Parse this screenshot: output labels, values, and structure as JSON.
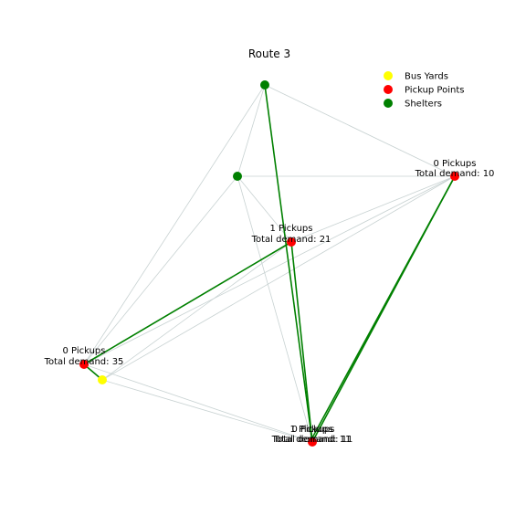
{
  "title": "Route 3",
  "legend": {
    "placement": "top-right",
    "items": [
      {
        "label": "Bus Yards",
        "color": "#ffff00"
      },
      {
        "label": "Pickup Points",
        "color": "#ff0000"
      },
      {
        "label": "Shelters",
        "color": "#008000"
      }
    ]
  },
  "colors": {
    "edge": "#c8d2d2",
    "route": "#008000",
    "bus_yard": "#ffff00",
    "pickup": "#ff0000",
    "shelter": "#008000"
  },
  "node_labels": {
    "pickup_right": {
      "pickups": "0 Pickups",
      "demand": "Total demand: 10"
    },
    "pickup_center": {
      "pickups": "1 Pickups",
      "demand": "Total demand: 21"
    },
    "pickup_left": {
      "pickups": "0 Pickups",
      "demand": "Total demand: 35"
    },
    "pickup_bottom_a": {
      "pickups": "1 Pickups",
      "demand": "Total demand: 11"
    },
    "pickup_bottom_b": {
      "pickups": "0 Pickups",
      "demand": "Total demand: 11"
    }
  }
}
